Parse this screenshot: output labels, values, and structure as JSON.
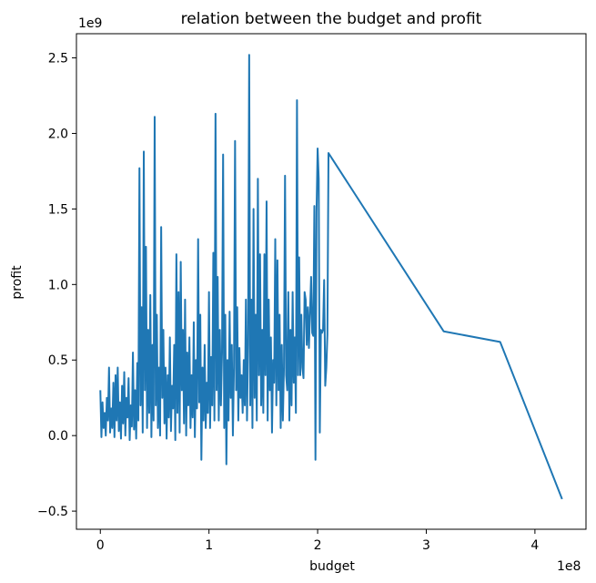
{
  "chart_data": {
    "type": "line",
    "title": "relation between the budget and profit",
    "xlabel": "budget",
    "ylabel": "profit",
    "x_offset_label": "1e8",
    "y_offset_label": "1e9",
    "x_scale": 100000000,
    "y_scale": 1000000000,
    "xlim": [
      -0.22,
      4.47
    ],
    "ylim": [
      -0.62,
      2.66
    ],
    "x_ticks": [
      0,
      1,
      2,
      3,
      4
    ],
    "x_tick_labels": [
      "0",
      "1",
      "2",
      "3",
      "4"
    ],
    "y_ticks": [
      -0.5,
      0.0,
      0.5,
      1.0,
      1.5,
      2.0,
      2.5
    ],
    "y_tick_labels": [
      "−0.5",
      "0.0",
      "0.5",
      "1.0",
      "1.5",
      "2.0",
      "2.5"
    ],
    "grid": false,
    "line_color": "#1f77b4",
    "series": [
      {
        "points": [
          [
            0.0,
            0.3
          ],
          [
            0.01,
            -0.01
          ],
          [
            0.02,
            0.22
          ],
          [
            0.03,
            0.05
          ],
          [
            0.04,
            0.15
          ],
          [
            0.05,
            0.0
          ],
          [
            0.06,
            0.25
          ],
          [
            0.07,
            0.1
          ],
          [
            0.08,
            0.45
          ],
          [
            0.09,
            0.02
          ],
          [
            0.1,
            0.18
          ],
          [
            0.11,
            0.05
          ],
          [
            0.12,
            0.35
          ],
          [
            0.13,
            -0.01
          ],
          [
            0.14,
            0.4
          ],
          [
            0.15,
            0.1
          ],
          [
            0.16,
            0.45
          ],
          [
            0.17,
            0.03
          ],
          [
            0.18,
            0.22
          ],
          [
            0.19,
            -0.02
          ],
          [
            0.2,
            0.33
          ],
          [
            0.21,
            0.08
          ],
          [
            0.22,
            0.42
          ],
          [
            0.23,
            0.0
          ],
          [
            0.24,
            0.25
          ],
          [
            0.25,
            0.12
          ],
          [
            0.26,
            0.38
          ],
          [
            0.27,
            -0.03
          ],
          [
            0.28,
            0.2
          ],
          [
            0.29,
            0.06
          ],
          [
            0.3,
            0.55
          ],
          [
            0.31,
            0.04
          ],
          [
            0.32,
            0.3
          ],
          [
            0.33,
            -0.02
          ],
          [
            0.34,
            0.48
          ],
          [
            0.35,
            0.1
          ],
          [
            0.36,
            1.77
          ],
          [
            0.37,
            0.2
          ],
          [
            0.38,
            0.85
          ],
          [
            0.39,
            0.02
          ],
          [
            0.4,
            1.88
          ],
          [
            0.41,
            0.3
          ],
          [
            0.42,
            1.25
          ],
          [
            0.43,
            0.05
          ],
          [
            0.44,
            0.7
          ],
          [
            0.45,
            0.15
          ],
          [
            0.46,
            0.93
          ],
          [
            0.47,
            -0.01
          ],
          [
            0.48,
            0.6
          ],
          [
            0.49,
            0.1
          ],
          [
            0.5,
            2.11
          ],
          [
            0.51,
            0.2
          ],
          [
            0.52,
            0.8
          ],
          [
            0.53,
            0.05
          ],
          [
            0.54,
            0.45
          ],
          [
            0.55,
            0.0
          ],
          [
            0.56,
            1.38
          ],
          [
            0.57,
            0.25
          ],
          [
            0.58,
            0.7
          ],
          [
            0.59,
            0.08
          ],
          [
            0.6,
            0.45
          ],
          [
            0.61,
            -0.02
          ],
          [
            0.62,
            0.4
          ],
          [
            0.63,
            0.12
          ],
          [
            0.64,
            0.65
          ],
          [
            0.65,
            0.03
          ],
          [
            0.66,
            0.33
          ],
          [
            0.67,
            0.18
          ],
          [
            0.68,
            0.6
          ],
          [
            0.69,
            -0.03
          ],
          [
            0.7,
            1.2
          ],
          [
            0.71,
            0.15
          ],
          [
            0.72,
            0.95
          ],
          [
            0.73,
            0.02
          ],
          [
            0.74,
            1.15
          ],
          [
            0.75,
            0.3
          ],
          [
            0.76,
            0.7
          ],
          [
            0.77,
            0.08
          ],
          [
            0.78,
            0.9
          ],
          [
            0.79,
            0.0
          ],
          [
            0.8,
            0.55
          ],
          [
            0.81,
            0.2
          ],
          [
            0.82,
            0.65
          ],
          [
            0.83,
            0.05
          ],
          [
            0.84,
            0.4
          ],
          [
            0.85,
            0.12
          ],
          [
            0.86,
            0.75
          ],
          [
            0.87,
            -0.01
          ],
          [
            0.88,
            0.5
          ],
          [
            0.89,
            0.18
          ],
          [
            0.9,
            1.3
          ],
          [
            0.91,
            0.22
          ],
          [
            0.92,
            0.8
          ],
          [
            0.93,
            -0.16
          ],
          [
            0.94,
            0.45
          ],
          [
            0.95,
            0.1
          ],
          [
            0.96,
            0.6
          ],
          [
            0.97,
            0.05
          ],
          [
            0.98,
            0.35
          ],
          [
            0.99,
            0.15
          ],
          [
            1.0,
            0.95
          ],
          [
            1.01,
            0.05
          ],
          [
            1.02,
            0.52
          ],
          [
            1.03,
            0.2
          ],
          [
            1.04,
            1.21
          ],
          [
            1.05,
            0.1
          ],
          [
            1.06,
            2.13
          ],
          [
            1.07,
            0.3
          ],
          [
            1.08,
            1.05
          ],
          [
            1.09,
            0.1
          ],
          [
            1.1,
            0.7
          ],
          [
            1.11,
            0.2
          ],
          [
            1.12,
            0.55
          ],
          [
            1.13,
            1.86
          ],
          [
            1.14,
            0.05
          ],
          [
            1.15,
            0.8
          ],
          [
            1.16,
            -0.19
          ],
          [
            1.17,
            0.5
          ],
          [
            1.18,
            0.1
          ],
          [
            1.19,
            0.82
          ],
          [
            1.2,
            0.25
          ],
          [
            1.21,
            0.6
          ],
          [
            1.22,
            0.0
          ],
          [
            1.23,
            0.45
          ],
          [
            1.24,
            1.95
          ],
          [
            1.25,
            0.3
          ],
          [
            1.26,
            0.85
          ],
          [
            1.27,
            0.1
          ],
          [
            1.28,
            0.58
          ],
          [
            1.29,
            0.25
          ],
          [
            1.3,
            0.4
          ],
          [
            1.31,
            0.15
          ],
          [
            1.32,
            0.5
          ],
          [
            1.33,
            0.2
          ],
          [
            1.34,
            0.9
          ],
          [
            1.35,
            0.1
          ],
          [
            1.36,
            0.6
          ],
          [
            1.37,
            2.52
          ],
          [
            1.38,
            0.2
          ],
          [
            1.39,
            0.9
          ],
          [
            1.4,
            0.05
          ],
          [
            1.41,
            1.5
          ],
          [
            1.42,
            0.25
          ],
          [
            1.43,
            0.8
          ],
          [
            1.44,
            0.1
          ],
          [
            1.45,
            1.7
          ],
          [
            1.46,
            0.4
          ],
          [
            1.47,
            1.2
          ],
          [
            1.48,
            0.2
          ],
          [
            1.49,
            0.7
          ],
          [
            1.5,
            0.15
          ],
          [
            1.51,
            1.2
          ],
          [
            1.52,
            0.4
          ],
          [
            1.53,
            1.55
          ],
          [
            1.54,
            0.1
          ],
          [
            1.55,
            0.9
          ],
          [
            1.56,
            0.3
          ],
          [
            1.57,
            0.65
          ],
          [
            1.58,
            0.02
          ],
          [
            1.59,
            0.5
          ],
          [
            1.6,
            0.35
          ],
          [
            1.61,
            1.3
          ],
          [
            1.62,
            0.2
          ],
          [
            1.63,
            1.16
          ],
          [
            1.64,
            0.3
          ],
          [
            1.65,
            0.8
          ],
          [
            1.66,
            0.05
          ],
          [
            1.67,
            0.6
          ],
          [
            1.68,
            0.1
          ],
          [
            1.69,
            0.45
          ],
          [
            1.7,
            1.72
          ],
          [
            1.71,
            0.4
          ],
          [
            1.72,
            0.3
          ],
          [
            1.73,
            0.95
          ],
          [
            1.74,
            0.1
          ],
          [
            1.75,
            0.7
          ],
          [
            1.76,
            0.2
          ],
          [
            1.77,
            0.95
          ],
          [
            1.78,
            0.35
          ],
          [
            1.79,
            0.65
          ],
          [
            1.8,
            0.15
          ],
          [
            1.81,
            2.22
          ],
          [
            1.82,
            0.4
          ],
          [
            1.83,
            1.18
          ],
          [
            1.84,
            0.4
          ],
          [
            1.85,
            0.8
          ],
          [
            1.86,
            0.45
          ],
          [
            1.87,
            0.38
          ],
          [
            1.88,
            0.95
          ],
          [
            1.89,
            0.9
          ],
          [
            1.9,
            0.6
          ],
          [
            1.91,
            0.85
          ],
          [
            1.92,
            0.58
          ],
          [
            1.93,
            0.82
          ],
          [
            1.94,
            1.05
          ],
          [
            1.95,
            0.68
          ],
          [
            1.96,
            0.66
          ],
          [
            1.97,
            1.52
          ],
          [
            1.98,
            -0.16
          ],
          [
            1.99,
            1.48
          ],
          [
            2.0,
            1.9
          ],
          [
            2.01,
            1.7
          ],
          [
            2.02,
            0.02
          ],
          [
            2.03,
            0.7
          ],
          [
            2.04,
            0.68
          ],
          [
            2.05,
            0.7
          ],
          [
            2.06,
            1.03
          ],
          [
            2.07,
            0.33
          ],
          [
            2.08,
            0.45
          ],
          [
            2.09,
            0.67
          ],
          [
            2.1,
            1.87
          ],
          [
            3.16,
            0.69
          ],
          [
            3.68,
            0.62
          ],
          [
            4.25,
            -0.42
          ]
        ]
      }
    ]
  }
}
